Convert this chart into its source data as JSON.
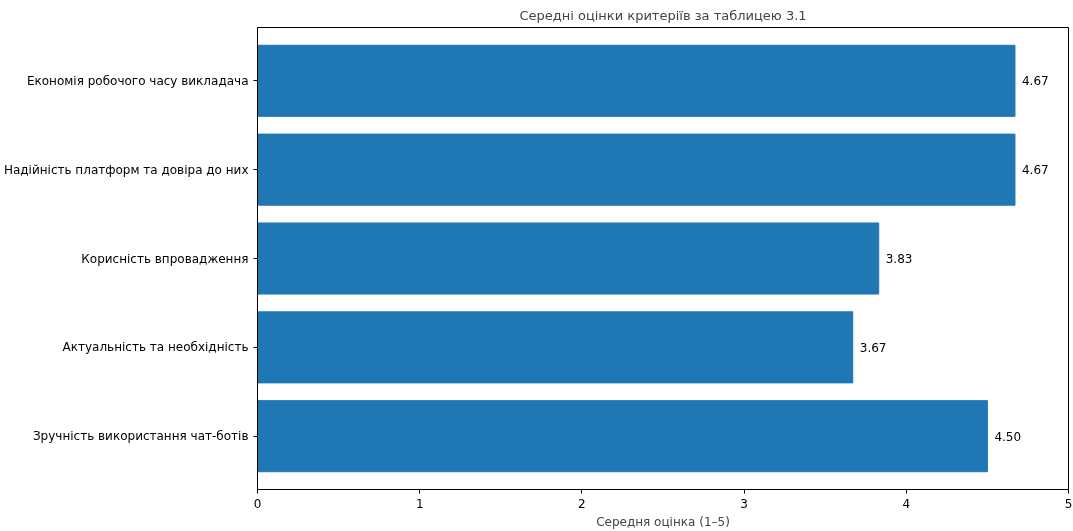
{
  "chart_data": {
    "type": "bar",
    "orientation": "horizontal",
    "title": "Середні оцінки критеріїв за таблицею 3.1",
    "xlabel": "Середня оцінка (1–5)",
    "categories": [
      "Економія робочого часу викладача",
      "Надійність платформ та довіра до них",
      "Корисність впровадження",
      "Актуальність та необхідність",
      "Зручність використання чат-ботів"
    ],
    "values": [
      4.67,
      4.67,
      3.83,
      3.67,
      4.5
    ],
    "value_labels": [
      "4.67",
      "4.67",
      "3.83",
      "3.67",
      "4.50"
    ],
    "color": "#1f77b4",
    "xlim": [
      0,
      5
    ],
    "xticks": [
      0,
      1,
      2,
      3,
      4,
      5
    ],
    "grid": false
  }
}
